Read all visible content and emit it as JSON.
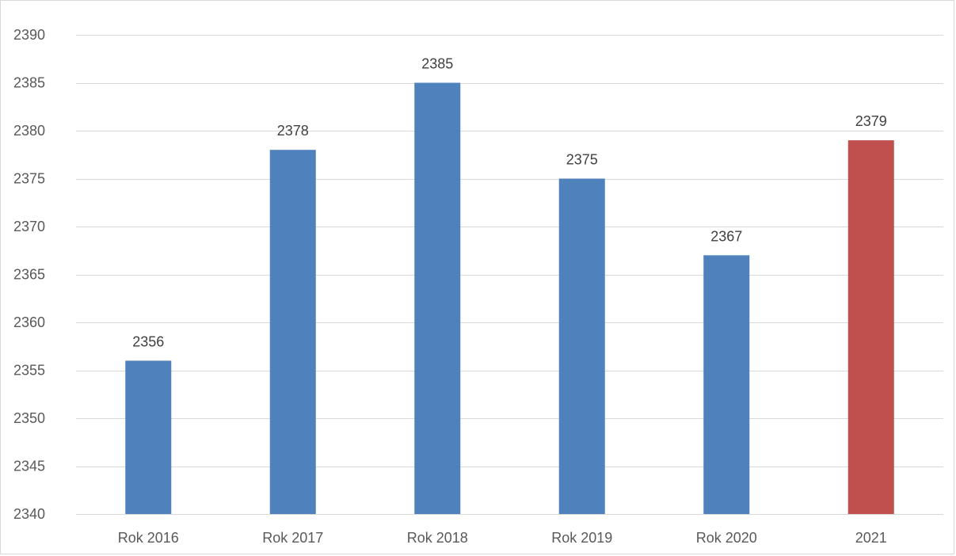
{
  "chart_data": {
    "type": "bar",
    "title": "",
    "xlabel": "",
    "ylabel": "",
    "categories": [
      "Rok 2016",
      "Rok 2017",
      "Rok 2018",
      "Rok 2019",
      "Rok 2020",
      "2021"
    ],
    "values": [
      2356,
      2378,
      2385,
      2375,
      2367,
      2379
    ],
    "data_labels": [
      "2356",
      "2378",
      "2385",
      "2375",
      "2367",
      "2379"
    ],
    "ylim": [
      2340,
      2390
    ],
    "yticks": [
      2340,
      2345,
      2350,
      2355,
      2360,
      2365,
      2370,
      2375,
      2380,
      2385,
      2390
    ],
    "ytick_labels": [
      "2340",
      "2345",
      "2350",
      "2355",
      "2360",
      "2365",
      "2370",
      "2375",
      "2380",
      "2385",
      "2390"
    ],
    "grid": true,
    "legend": "none",
    "colors": {
      "default_bar": "#4f81bd",
      "highlight_bar": "#c0504d",
      "gridline": "#d9d9d9",
      "tick_text": "#595959",
      "label_text": "#404040"
    },
    "highlight_index": 5
  }
}
